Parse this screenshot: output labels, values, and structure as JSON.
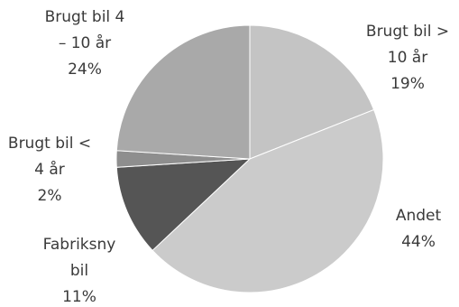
{
  "chart_data": {
    "type": "pie",
    "title": "",
    "start_angle_deg": 90,
    "direction": "clockwise",
    "slices": [
      {
        "category": "Brugt bil > 10 år",
        "label_lines": [
          "Brugt bil >",
          "10 år"
        ],
        "value": 19,
        "pct_text": "19%",
        "color": "#c4c4c4"
      },
      {
        "category": "Andet",
        "label_lines": [
          "Andet"
        ],
        "value": 44,
        "pct_text": "44%",
        "color": "#cbcbcb"
      },
      {
        "category": "Fabriksny bil",
        "label_lines": [
          "Fabriksny",
          "bil"
        ],
        "value": 11,
        "pct_text": "11%",
        "color": "#555555"
      },
      {
        "category": "Brugt bil < 4 år",
        "label_lines": [
          "Brugt bil <",
          "4 år"
        ],
        "value": 2,
        "pct_text": "2%",
        "color": "#8e8e8e"
      },
      {
        "category": "Brugt bil 4 – 10 år",
        "label_lines": [
          "Brugt bil 4",
          "– 10 år"
        ],
        "value": 24,
        "pct_text": "24%",
        "color": "#a9a9a9"
      }
    ]
  }
}
